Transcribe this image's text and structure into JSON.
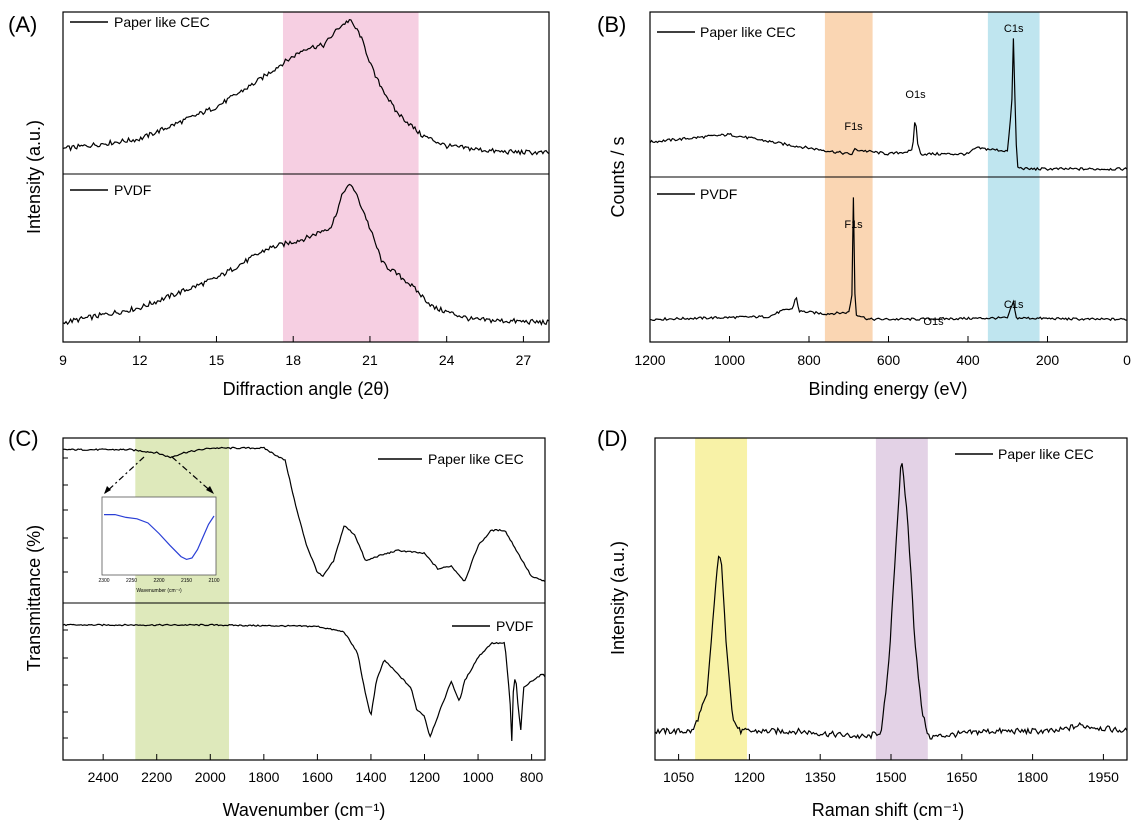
{
  "colors": {
    "A_band": "#f3bfd8",
    "B_band_F": "#f8c89a",
    "B_band_C": "#a9dcea",
    "C_band": "#d3e2a4",
    "D_band_1": "#f5ee8a",
    "D_band_2": "#d9c3de",
    "inset_line": "#2a3fd6",
    "line": "#000000"
  },
  "chart_data": [
    {
      "id": "A",
      "type": "line",
      "panel_label": "(A)",
      "xlabel": "Diffraction angle (2θ)",
      "ylabel": "Intensity (a.u.)",
      "xlim": [
        9,
        28
      ],
      "x_ticks": [
        "9",
        "12",
        "15",
        "18",
        "21",
        "24",
        "27"
      ],
      "x_tick_values": [
        9,
        12,
        15,
        18,
        21,
        24,
        27
      ],
      "highlight_bands": [
        {
          "from": 17.6,
          "to": 22.9,
          "color": "#f3bfd8"
        }
      ],
      "series": [
        {
          "name": "Paper like CEC",
          "x": [
            9,
            12,
            15,
            16.5,
            17.5,
            18.5,
            19.2,
            19.8,
            20.2,
            20.6,
            21.2,
            22,
            23,
            24,
            26,
            28
          ],
          "y": [
            0.08,
            0.15,
            0.38,
            0.55,
            0.68,
            0.8,
            0.82,
            0.95,
            1.0,
            0.9,
            0.6,
            0.35,
            0.18,
            0.1,
            0.06,
            0.05
          ]
        },
        {
          "name": "PVDF",
          "x": [
            9,
            12,
            15,
            17,
            18.5,
            19.5,
            20.0,
            20.3,
            20.8,
            21.5,
            22.5,
            23.5,
            25,
            28
          ],
          "y": [
            0.05,
            0.15,
            0.35,
            0.55,
            0.62,
            0.7,
            0.95,
            0.98,
            0.78,
            0.45,
            0.32,
            0.15,
            0.07,
            0.05
          ]
        }
      ]
    },
    {
      "id": "B",
      "type": "line",
      "panel_label": "(B)",
      "xlabel": "Binding energy (eV)",
      "ylabel": "Counts / s",
      "xlim": [
        1200,
        0
      ],
      "x_ticks": [
        "1200",
        "1000",
        "800",
        "600",
        "400",
        "200",
        "0"
      ],
      "x_tick_values": [
        1200,
        1000,
        800,
        600,
        400,
        200,
        0
      ],
      "highlight_bands": [
        {
          "from": 760,
          "to": 640,
          "color": "#f8c89a"
        },
        {
          "from": 350,
          "to": 220,
          "color": "#a9dcea"
        }
      ],
      "peak_labels": [
        {
          "series": "Paper like CEC",
          "text": "F1s",
          "x": 688
        },
        {
          "series": "Paper like CEC",
          "text": "O1s",
          "x": 532
        },
        {
          "series": "Paper like CEC",
          "text": "C1s",
          "x": 285
        },
        {
          "series": "PVDF",
          "text": "F1s",
          "x": 688
        },
        {
          "series": "PVDF",
          "text": "O1s",
          "x": 532
        },
        {
          "series": "PVDF",
          "text": "C1s",
          "x": 285
        }
      ],
      "series": [
        {
          "name": "Paper like CEC",
          "x": [
            1200,
            1000,
            850,
            700,
            690,
            687,
            600,
            540,
            535,
            532,
            529,
            520,
            400,
            380,
            300,
            289,
            285,
            281,
            275,
            250,
            100,
            0
          ],
          "y": [
            0.2,
            0.25,
            0.18,
            0.12,
            0.12,
            0.15,
            0.12,
            0.14,
            0.3,
            0.4,
            0.22,
            0.12,
            0.12,
            0.16,
            0.14,
            0.5,
            1.0,
            0.3,
            0.03,
            0.02,
            0.02,
            0.02
          ]
        },
        {
          "name": "PVDF",
          "x": [
            1200,
            900,
            870,
            840,
            833,
            825,
            760,
            700,
            692,
            688,
            684,
            650,
            550,
            300,
            290,
            285,
            280,
            100,
            0
          ],
          "y": [
            0.02,
            0.04,
            0.08,
            0.1,
            0.2,
            0.08,
            0.06,
            0.07,
            0.2,
            1.0,
            0.06,
            0.02,
            0.02,
            0.03,
            0.12,
            0.15,
            0.03,
            0.02,
            0.02
          ]
        }
      ]
    },
    {
      "id": "C",
      "type": "line",
      "panel_label": "(C)",
      "xlabel": "Wavenumber (cm⁻¹)",
      "ylabel": "Transmittance (%)",
      "xlim": [
        2550,
        750
      ],
      "x_ticks": [
        "2400",
        "2200",
        "2000",
        "1800",
        "1600",
        "1400",
        "1200",
        "1000",
        "800"
      ],
      "x_tick_values": [
        2400,
        2200,
        2000,
        1800,
        1600,
        1400,
        1200,
        1000,
        800
      ],
      "highlight_bands": [
        {
          "from": 2280,
          "to": 1930,
          "color": "#d3e2a4"
        }
      ],
      "series": [
        {
          "name": "Paper like CEC",
          "x": [
            2550,
            2300,
            2200,
            2150,
            2100,
            2000,
            1800,
            1720,
            1680,
            1640,
            1600,
            1580,
            1540,
            1500,
            1460,
            1420,
            1380,
            1300,
            1200,
            1150,
            1100,
            1050,
            1000,
            950,
            900,
            850,
            800,
            750
          ],
          "y": [
            0.97,
            0.97,
            0.95,
            0.92,
            0.95,
            0.98,
            0.98,
            0.9,
            0.6,
            0.35,
            0.18,
            0.15,
            0.25,
            0.48,
            0.42,
            0.25,
            0.28,
            0.32,
            0.3,
            0.2,
            0.22,
            0.12,
            0.35,
            0.45,
            0.45,
            0.3,
            0.15,
            0.12
          ]
        },
        {
          "name": "PVDF",
          "x": [
            2550,
            2000,
            1600,
            1500,
            1450,
            1420,
            1400,
            1380,
            1350,
            1300,
            1250,
            1230,
            1200,
            1180,
            1160,
            1100,
            1070,
            1050,
            1000,
            950,
            900,
            880,
            875,
            870,
            860,
            850,
            840,
            830,
            800,
            760,
            750
          ],
          "y": [
            0.95,
            0.95,
            0.94,
            0.9,
            0.75,
            0.45,
            0.3,
            0.55,
            0.7,
            0.6,
            0.5,
            0.35,
            0.3,
            0.15,
            0.25,
            0.55,
            0.4,
            0.55,
            0.72,
            0.82,
            0.82,
            0.4,
            0.05,
            0.45,
            0.6,
            0.35,
            0.2,
            0.5,
            0.55,
            0.6,
            0.58
          ]
        }
      ],
      "inset": {
        "xlabel": "Wavenumber (cm⁻¹)",
        "x_ticks": [
          "2300",
          "2250",
          "2200",
          "2150",
          "2100"
        ],
        "xlim": [
          2300,
          2100
        ],
        "x": [
          2300,
          2280,
          2260,
          2240,
          2220,
          2200,
          2180,
          2160,
          2150,
          2140,
          2130,
          2120,
          2110,
          2100
        ],
        "y": [
          0.82,
          0.82,
          0.78,
          0.76,
          0.7,
          0.55,
          0.38,
          0.22,
          0.18,
          0.2,
          0.32,
          0.5,
          0.68,
          0.8
        ]
      }
    },
    {
      "id": "D",
      "type": "line",
      "panel_label": "(D)",
      "xlabel": "Raman shift (cm⁻¹)",
      "ylabel": "Intensity (a.u.)",
      "xlim": [
        1000,
        2000
      ],
      "x_ticks": [
        "1050",
        "1200",
        "1350",
        "1500",
        "1650",
        "1800",
        "1950"
      ],
      "x_tick_values": [
        1050,
        1200,
        1350,
        1500,
        1650,
        1800,
        1950
      ],
      "highlight_bands": [
        {
          "from": 1085,
          "to": 1195,
          "color": "#f5ee8a"
        },
        {
          "from": 1468,
          "to": 1578,
          "color": "#d9c3de"
        }
      ],
      "series": [
        {
          "name": "Paper like CEC",
          "x": [
            1000,
            1080,
            1110,
            1125,
            1135,
            1140,
            1150,
            1165,
            1180,
            1300,
            1450,
            1480,
            1495,
            1510,
            1522,
            1535,
            1550,
            1565,
            1580,
            1700,
            1850,
            1900,
            2000
          ],
          "y": [
            0.08,
            0.08,
            0.2,
            0.5,
            0.68,
            0.66,
            0.4,
            0.12,
            0.08,
            0.08,
            0.06,
            0.08,
            0.3,
            0.7,
            1.0,
            0.8,
            0.4,
            0.15,
            0.06,
            0.08,
            0.08,
            0.1,
            0.08
          ]
        }
      ]
    }
  ]
}
